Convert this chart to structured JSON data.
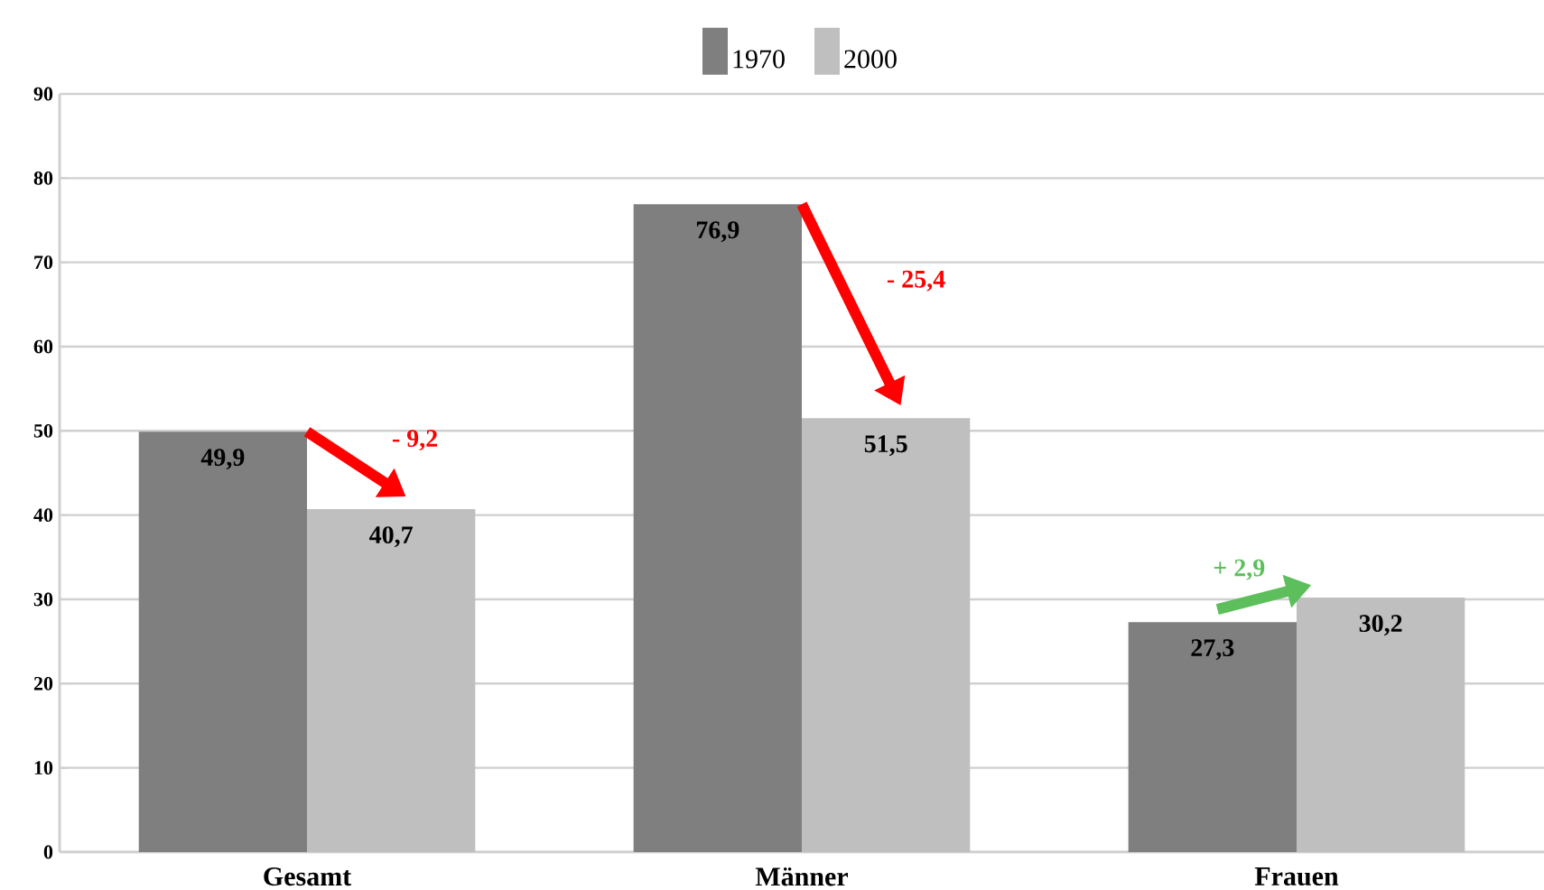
{
  "chart_data": {
    "type": "bar",
    "categories": [
      "Gesamt",
      "Männer",
      "Frauen"
    ],
    "series": [
      {
        "name": "1970",
        "color": "#7f7f7f",
        "values": [
          49.9,
          76.9,
          27.3
        ],
        "value_labels": [
          "49,9",
          "76,9",
          "27,3"
        ]
      },
      {
        "name": "2000",
        "color": "#bfbfbf",
        "values": [
          40.7,
          51.5,
          30.2
        ],
        "value_labels": [
          "40,7",
          "51,5",
          "30,2"
        ]
      }
    ],
    "ylim": [
      0,
      90
    ],
    "yticks": [
      0,
      10,
      20,
      30,
      40,
      50,
      60,
      70,
      80,
      90
    ],
    "grid": "y",
    "legend": "top",
    "annotations": [
      "- 9,2",
      "- 25,4",
      "+ 2,9"
    ]
  }
}
